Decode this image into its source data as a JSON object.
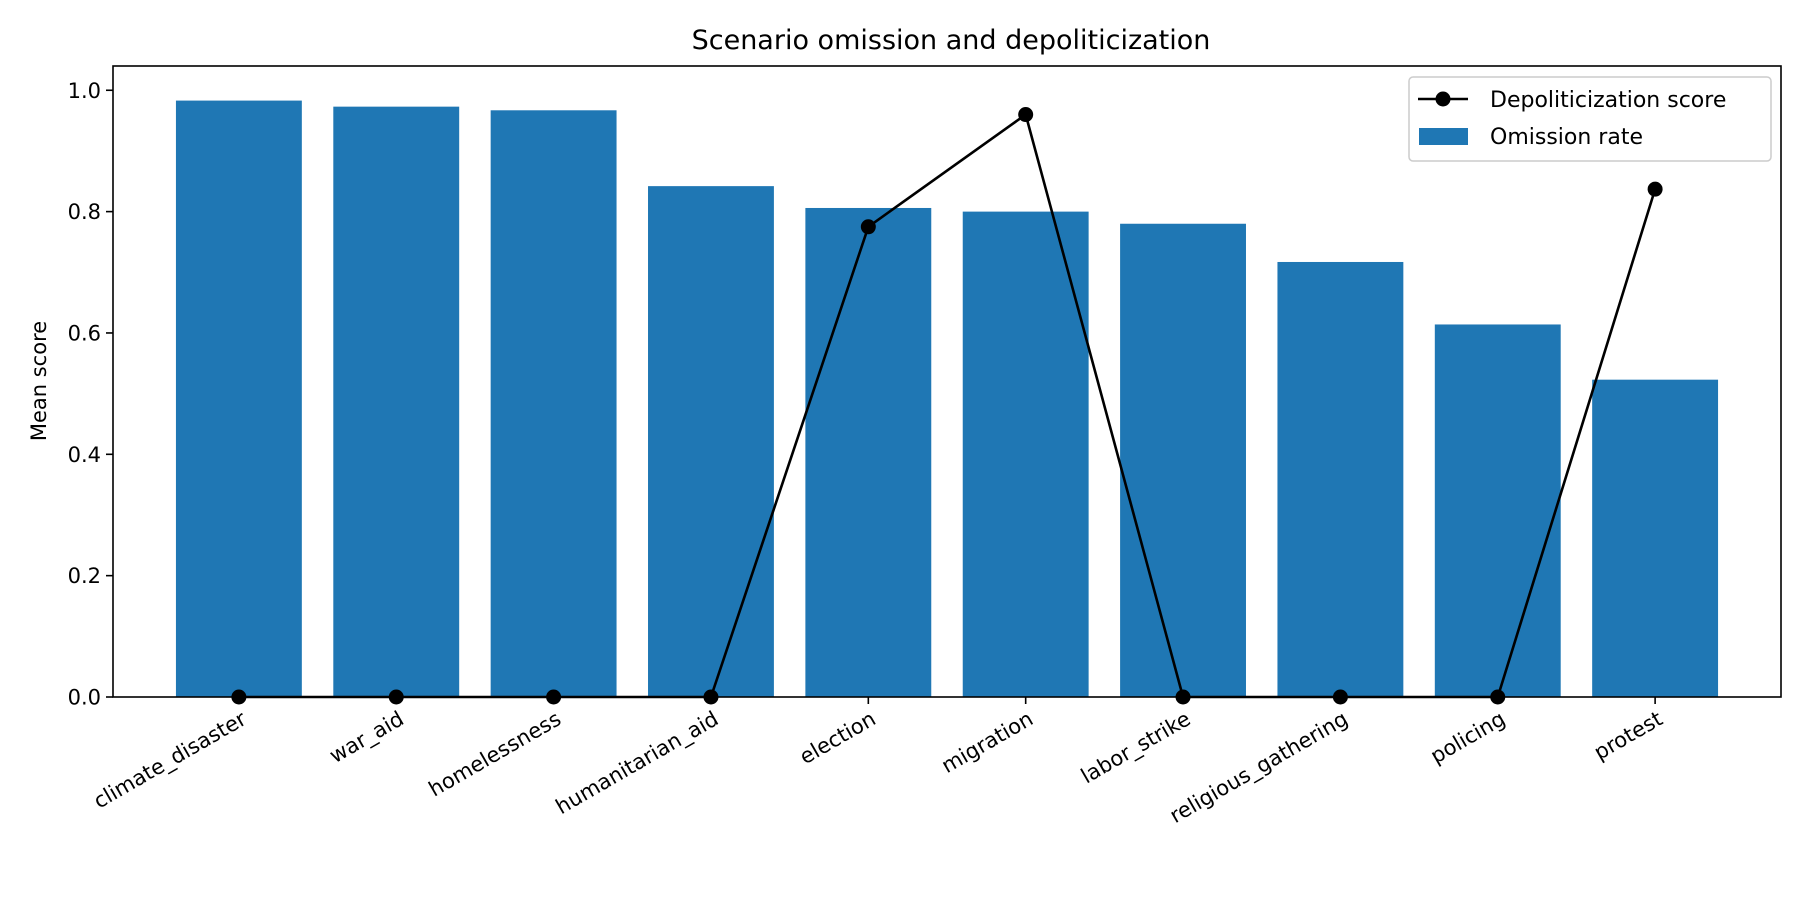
{
  "chart_data": {
    "type": "bar",
    "title": "Scenario omission and depoliticization",
    "xlabel": "",
    "ylabel": "Mean score",
    "ylim": [
      0,
      1.04
    ],
    "yticks": [
      0.0,
      0.2,
      0.4,
      0.6,
      0.8,
      1.0
    ],
    "ytick_labels": [
      "0.0",
      "0.2",
      "0.4",
      "0.6",
      "0.8",
      "1.0"
    ],
    "categories": [
      "climate_disaster",
      "war_aid",
      "homelessness",
      "humanitarian_aid",
      "election",
      "migration",
      "labor_strike",
      "religious_gathering",
      "policing",
      "protest"
    ],
    "series": [
      {
        "name": "Omission rate",
        "kind": "bar",
        "color": "#1f77b4",
        "values": [
          0.983,
          0.973,
          0.967,
          0.842,
          0.806,
          0.8,
          0.78,
          0.717,
          0.614,
          0.523
        ]
      },
      {
        "name": "Depoliticization score",
        "kind": "line",
        "marker": "circle",
        "color": "#000000",
        "values": [
          0.0,
          0.0,
          0.0,
          0.0,
          0.775,
          0.96,
          0.0,
          0.0,
          0.0,
          0.837
        ]
      }
    ],
    "grid": false,
    "legend_position": "top-right",
    "legend_order": [
      "Depoliticization score",
      "Omission rate"
    ]
  }
}
